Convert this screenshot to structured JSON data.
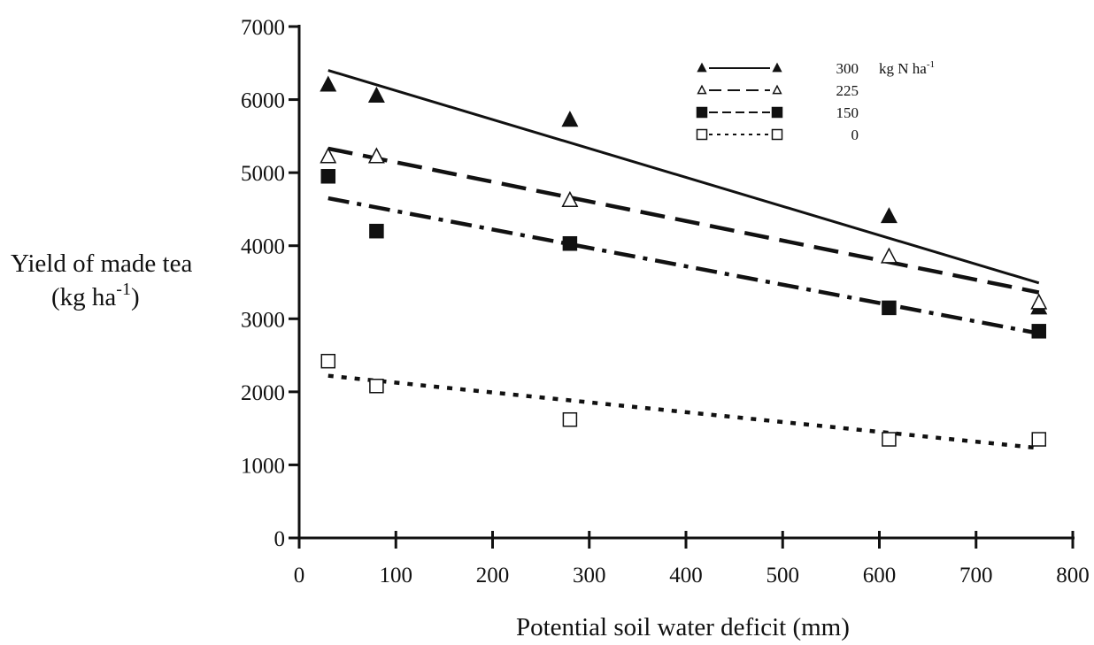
{
  "chart_data": {
    "type": "scatter",
    "xlabel": "Potential soil water deficit (mm)",
    "ylabel_line1": "Yield of made tea",
    "ylabel_line2_base": "(kg ha",
    "ylabel_line2_sup": "-1",
    "ylabel_line2_end": ")",
    "xlim": [
      0,
      800
    ],
    "ylim": [
      0,
      7000
    ],
    "x_ticks": [
      0,
      100,
      200,
      300,
      400,
      500,
      600,
      700,
      800
    ],
    "y_ticks": [
      0,
      1000,
      2000,
      3000,
      4000,
      5000,
      6000,
      7000
    ],
    "x_tick_labels": [
      "0",
      "100",
      "200",
      "300",
      "400",
      "500",
      "600",
      "700",
      "800"
    ],
    "y_tick_labels": [
      "0",
      "1000",
      "2000",
      "3000",
      "4000",
      "5000",
      "6000",
      "7000"
    ],
    "legend_unit_base": "kg N ha",
    "legend_unit_sup": "-1",
    "legend_position": "top-right",
    "grid": false,
    "series": [
      {
        "name": "300",
        "marker": "filled-triangle",
        "line_style": "solid",
        "points": [
          [
            30,
            6200
          ],
          [
            80,
            6050
          ],
          [
            280,
            5720
          ],
          [
            610,
            4400
          ],
          [
            765,
            3150
          ]
        ],
        "fit": [
          [
            30,
            6400
          ],
          [
            765,
            3490
          ]
        ]
      },
      {
        "name": "225",
        "marker": "open-triangle",
        "line_style": "long-dash",
        "points": [
          [
            30,
            5220
          ],
          [
            80,
            5220
          ],
          [
            280,
            4620
          ],
          [
            610,
            3850
          ],
          [
            765,
            3220
          ]
        ],
        "fit": [
          [
            30,
            5330
          ],
          [
            765,
            3360
          ]
        ]
      },
      {
        "name": "150",
        "marker": "filled-square",
        "line_style": "dash-dot",
        "points": [
          [
            30,
            4950
          ],
          [
            80,
            4200
          ],
          [
            280,
            4030
          ],
          [
            610,
            3150
          ],
          [
            765,
            2830
          ]
        ],
        "fit": [
          [
            30,
            4650
          ],
          [
            765,
            2800
          ]
        ]
      },
      {
        "name": "0",
        "marker": "open-square",
        "line_style": "dotted",
        "points": [
          [
            30,
            2420
          ],
          [
            80,
            2080
          ],
          [
            280,
            1620
          ],
          [
            610,
            1350
          ],
          [
            765,
            1350
          ]
        ],
        "fit": [
          [
            30,
            2220
          ],
          [
            765,
            1230
          ]
        ]
      }
    ]
  }
}
